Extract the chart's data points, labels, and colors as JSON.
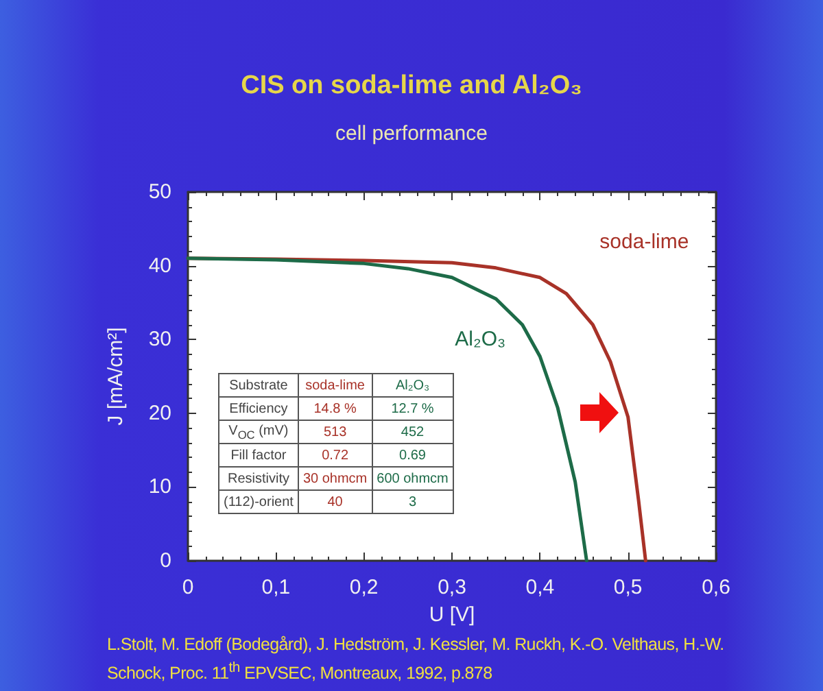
{
  "chart_data": {
    "type": "line",
    "title": "CIS on soda-lime and Al₂O₃",
    "subtitle": "cell performance",
    "xlabel": "U [V]",
    "ylabel": "J [mA/cm²]",
    "xlim": [
      0,
      0.6
    ],
    "xticks": [
      {
        "value": 0,
        "label": "0"
      },
      {
        "value": 0.1,
        "label": "0,1"
      },
      {
        "value": 0.2,
        "label": "0,2"
      },
      {
        "value": 0.3,
        "label": "0,3"
      },
      {
        "value": 0.4,
        "label": "0,4"
      },
      {
        "value": 0.5,
        "label": "0,5"
      },
      {
        "value": 0.6,
        "label": "0,6"
      }
    ],
    "ylim": [
      0,
      50
    ],
    "yticks": [
      0,
      10,
      20,
      30,
      40,
      50
    ],
    "grid": false,
    "legend": false,
    "marker": "none",
    "line_style": "solid",
    "series": [
      {
        "name": "soda-lime",
        "color": "#a83228",
        "x": [
          0,
          0.1,
          0.2,
          0.3,
          0.35,
          0.4,
          0.43,
          0.46,
          0.48,
          0.5,
          0.512,
          0.52
        ],
        "values": [
          41,
          40.9,
          40.7,
          40.4,
          39.7,
          38.4,
          36.2,
          32,
          27,
          19.5,
          8.2,
          0
        ]
      },
      {
        "name": "Al₂O₃",
        "color": "#1d6b48",
        "x": [
          0,
          0.1,
          0.2,
          0.25,
          0.3,
          0.35,
          0.38,
          0.4,
          0.42,
          0.44,
          0.453
        ],
        "values": [
          41,
          40.8,
          40.3,
          39.6,
          38.4,
          35.5,
          32,
          27.7,
          20.8,
          10.7,
          0
        ]
      }
    ],
    "annotations": [
      "Substrate",
      "soda-lime",
      "Al₂O₃",
      "Efficiency",
      "14.8 %",
      "12.7 %",
      "V$_{OC}$ (mV)",
      "513",
      "452",
      "Fill factor",
      "0.72",
      "0.69",
      "Resistivity",
      "30 ohmcm",
      "600 ohmcm",
      "(112)-orient",
      "40",
      "3",
      "L.Stolt, M. Edoff (Bodegård), J. Hedström, J. Kessler, M. Ruckh, K.-O. Velthaus, H.-W. Schock, Proc. 11$^{th}$ EPVSEC, Montreaux, 1992, p.878"
    ]
  }
}
